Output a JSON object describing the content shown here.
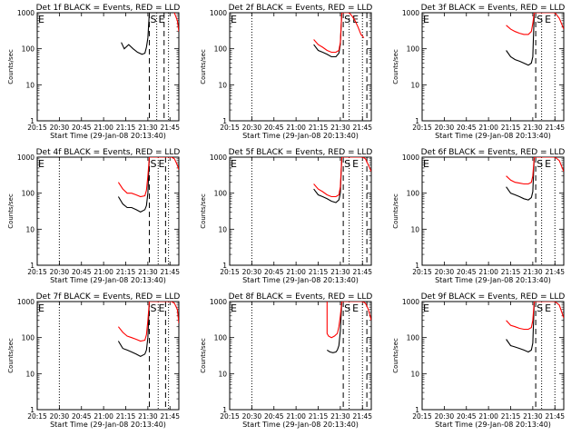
{
  "chart_data": [
    {
      "type": "line",
      "title": "Det 1f BLACK = Events, RED = LLD",
      "xlabel": "Start Time (29-Jan-08 20:13:40)",
      "ylabel": "Counts/sec",
      "xlim": [
        "20:15",
        "21:51"
      ],
      "ylim": [
        1,
        1000
      ],
      "yscale": "log",
      "x_ticks": [
        "20:15",
        "20:30",
        "20:45",
        "21:00",
        "21:15",
        "21:30",
        "21:45"
      ],
      "y_ticks": [
        "1",
        "10",
        "100",
        "1000"
      ],
      "markers": {
        "dotted": [
          "20:15",
          "21:36",
          "21:44"
        ],
        "dashed": [
          "21:31",
          "21:41"
        ],
        "labels": [
          "E",
          "S",
          "E"
        ]
      },
      "series": [
        {
          "name": "Events",
          "color": "#000000",
          "x": [
            "21:12",
            "21:14",
            "21:17",
            "21:20",
            "21:23",
            "21:26",
            "21:28",
            "21:29",
            "21:30",
            "21:31"
          ],
          "y": [
            150,
            100,
            130,
            100,
            80,
            70,
            75,
            110,
            200,
            1000
          ]
        },
        {
          "name": "LLD",
          "color": "#ff0000",
          "x": [
            "21:48",
            "21:50",
            "21:51"
          ],
          "y": [
            1000,
            600,
            300
          ]
        }
      ]
    },
    {
      "type": "line",
      "title": "Det 2f BLACK = Events, RED = LLD",
      "xlabel": "Start Time (29-Jan-08 20:13:40)",
      "ylabel": "Counts/sec",
      "xlim": [
        "20:15",
        "21:51"
      ],
      "ylim": [
        1,
        1000
      ],
      "yscale": "log",
      "x_ticks": [
        "20:15",
        "20:30",
        "20:45",
        "21:00",
        "21:15",
        "21:30",
        "21:45"
      ],
      "y_ticks": [
        "1",
        "10",
        "100",
        "1000"
      ],
      "markers": {
        "dotted": [
          "20:30",
          "21:36",
          "21:45"
        ],
        "dashed": [
          "21:32",
          "21:48"
        ],
        "labels": [
          "E",
          "S",
          "E"
        ]
      },
      "series": [
        {
          "name": "Events",
          "color": "#000000",
          "x": [
            "21:12",
            "21:15",
            "21:18",
            "21:21",
            "21:24",
            "21:27",
            "21:29",
            "21:30",
            "21:31"
          ],
          "y": [
            130,
            90,
            80,
            70,
            60,
            60,
            75,
            130,
            1000
          ]
        },
        {
          "name": "LLD",
          "color": "#ff0000",
          "x": [
            "21:12",
            "21:15",
            "21:18",
            "21:21",
            "21:24",
            "21:27",
            "21:29",
            "21:30",
            "21:31",
            "21:32",
            "21:34",
            "21:36",
            "21:38",
            "21:40",
            "21:42",
            "21:44",
            "21:46"
          ],
          "y": [
            180,
            130,
            110,
            90,
            80,
            80,
            90,
            150,
            1000,
            1000,
            1000,
            1000,
            800,
            600,
            400,
            250,
            200
          ]
        }
      ]
    },
    {
      "type": "line",
      "title": "Det 3f BLACK = Events, RED = LLD",
      "xlabel": "Start Time (29-Jan-08 20:13:40)",
      "ylabel": "Counts/sec",
      "xlim": [
        "20:15",
        "21:51"
      ],
      "ylim": [
        1,
        1000
      ],
      "yscale": "log",
      "x_ticks": [
        "20:15",
        "20:30",
        "20:45",
        "21:00",
        "21:15",
        "21:30",
        "21:45"
      ],
      "y_ticks": [
        "1",
        "10",
        "100",
        "1000"
      ],
      "markers": {
        "dotted": [
          "21:36",
          "21:45"
        ],
        "dashed": [
          "21:32"
        ],
        "labels": [
          "E",
          "S",
          "E"
        ]
      },
      "series": [
        {
          "name": "Events",
          "color": "#000000",
          "x": [
            "21:12",
            "21:15",
            "21:18",
            "21:21",
            "21:24",
            "21:27",
            "21:29",
            "21:30",
            "21:31"
          ],
          "y": [
            90,
            60,
            50,
            45,
            40,
            35,
            40,
            60,
            1000
          ]
        },
        {
          "name": "LLD",
          "color": "#ff0000",
          "x": [
            "21:12",
            "21:15",
            "21:18",
            "21:21",
            "21:24",
            "21:27",
            "21:29",
            "21:30",
            "21:31",
            "21:33",
            "21:36",
            "21:40",
            "21:45",
            "21:48",
            "21:51"
          ],
          "y": [
            450,
            350,
            300,
            270,
            250,
            250,
            300,
            500,
            1000,
            1000,
            1000,
            1000,
            1000,
            700,
            350
          ]
        }
      ]
    },
    {
      "type": "line",
      "title": "Det 4f BLACK = Events, RED = LLD",
      "xlabel": "Start Time (29-Jan-08 20:13:40)",
      "ylabel": "Counts/sec",
      "xlim": [
        "20:15",
        "21:51"
      ],
      "ylim": [
        1,
        1000
      ],
      "yscale": "log",
      "x_ticks": [
        "20:15",
        "20:30",
        "20:45",
        "21:00",
        "21:15",
        "21:30",
        "21:45"
      ],
      "y_ticks": [
        "1",
        "10",
        "100",
        "1000"
      ],
      "markers": {
        "dotted": [
          "20:30",
          "21:37",
          "21:44"
        ],
        "dashed": [
          "21:31",
          "21:42"
        ],
        "labels": [
          "E",
          "S",
          "E"
        ]
      },
      "series": [
        {
          "name": "Events",
          "color": "#000000",
          "x": [
            "21:10",
            "21:13",
            "21:16",
            "21:19",
            "21:22",
            "21:25",
            "21:28",
            "21:29",
            "21:30",
            "21:31"
          ],
          "y": [
            80,
            50,
            40,
            40,
            35,
            30,
            35,
            45,
            100,
            1000
          ]
        },
        {
          "name": "LLD",
          "color": "#ff0000",
          "x": [
            "21:10",
            "21:13",
            "21:16",
            "21:19",
            "21:22",
            "21:25",
            "21:28",
            "21:29",
            "21:30",
            "21:31",
            "21:42",
            "21:46",
            "21:48",
            "21:50",
            "21:51"
          ],
          "y": [
            200,
            130,
            100,
            100,
            90,
            80,
            85,
            120,
            300,
            1000,
            1000,
            1000,
            900,
            600,
            450
          ]
        }
      ]
    },
    {
      "type": "line",
      "title": "Det 5f BLACK = Events, RED = LLD",
      "xlabel": "Start Time (29-Jan-08 20:13:40)",
      "ylabel": "Counts/sec",
      "xlim": [
        "20:15",
        "21:51"
      ],
      "ylim": [
        1,
        1000
      ],
      "yscale": "log",
      "x_ticks": [
        "20:15",
        "20:30",
        "20:45",
        "21:00",
        "21:15",
        "21:30",
        "21:45"
      ],
      "y_ticks": [
        "1",
        "10",
        "100",
        "1000"
      ],
      "markers": {
        "dotted": [
          "20:30",
          "21:36",
          "21:45"
        ],
        "dashed": [
          "21:32",
          "21:48"
        ],
        "labels": [
          "E",
          "S",
          "E"
        ]
      },
      "series": [
        {
          "name": "Events",
          "color": "#000000",
          "x": [
            "21:12",
            "21:15",
            "21:18",
            "21:21",
            "21:24",
            "21:27",
            "21:29",
            "21:30",
            "21:31"
          ],
          "y": [
            130,
            90,
            80,
            70,
            60,
            55,
            65,
            100,
            1000
          ]
        },
        {
          "name": "LLD",
          "color": "#ff0000",
          "x": [
            "21:12",
            "21:15",
            "21:18",
            "21:21",
            "21:24",
            "21:27",
            "21:29",
            "21:30",
            "21:31",
            "21:45",
            "21:47",
            "21:49",
            "21:51"
          ],
          "y": [
            180,
            130,
            110,
            90,
            80,
            80,
            90,
            150,
            1000,
            1000,
            900,
            600,
            400
          ]
        }
      ]
    },
    {
      "type": "line",
      "title": "Det 6f BLACK = Events, RED = LLD",
      "xlabel": "Start Time (29-Jan-08 20:13:40)",
      "ylabel": "Counts/sec",
      "xlim": [
        "20:15",
        "21:51"
      ],
      "ylim": [
        1,
        1000
      ],
      "yscale": "log",
      "x_ticks": [
        "20:15",
        "20:30",
        "20:45",
        "21:00",
        "21:15",
        "21:30",
        "21:45"
      ],
      "y_ticks": [
        "1",
        "10",
        "100",
        "1000"
      ],
      "markers": {
        "dotted": [
          "21:36",
          "21:45"
        ],
        "dashed": [
          "21:32"
        ],
        "labels": [
          "E",
          "S",
          "E"
        ]
      },
      "series": [
        {
          "name": "Events",
          "color": "#000000",
          "x": [
            "21:12",
            "21:15",
            "21:18",
            "21:21",
            "21:24",
            "21:27",
            "21:29",
            "21:30",
            "21:31"
          ],
          "y": [
            150,
            100,
            90,
            80,
            70,
            65,
            75,
            110,
            1000
          ]
        },
        {
          "name": "LLD",
          "color": "#ff0000",
          "x": [
            "21:12",
            "21:15",
            "21:18",
            "21:21",
            "21:24",
            "21:27",
            "21:29",
            "21:30",
            "21:31",
            "21:36",
            "21:45",
            "21:48",
            "21:51"
          ],
          "y": [
            300,
            230,
            200,
            190,
            180,
            180,
            200,
            300,
            1000,
            1000,
            1000,
            800,
            400
          ]
        }
      ]
    },
    {
      "type": "line",
      "title": "Det 7f BLACK = Events, RED = LLD",
      "xlabel": "Start Time (29-Jan-08 20:13:40)",
      "ylabel": "Counts/sec",
      "xlim": [
        "20:15",
        "21:51"
      ],
      "ylim": [
        1,
        1000
      ],
      "yscale": "log",
      "x_ticks": [
        "20:15",
        "20:30",
        "20:45",
        "21:00",
        "21:15",
        "21:30",
        "21:45"
      ],
      "y_ticks": [
        "1",
        "10",
        "100",
        "1000"
      ],
      "markers": {
        "dotted": [
          "20:30",
          "21:37",
          "21:44"
        ],
        "dashed": [
          "21:31",
          "21:42"
        ],
        "labels": [
          "E",
          "S",
          "E"
        ]
      },
      "series": [
        {
          "name": "Events",
          "color": "#000000",
          "x": [
            "21:10",
            "21:13",
            "21:16",
            "21:19",
            "21:22",
            "21:25",
            "21:28",
            "21:29",
            "21:30",
            "21:31"
          ],
          "y": [
            80,
            50,
            45,
            40,
            35,
            30,
            35,
            45,
            100,
            1000
          ]
        },
        {
          "name": "LLD",
          "color": "#ff0000",
          "x": [
            "21:10",
            "21:13",
            "21:16",
            "21:19",
            "21:22",
            "21:25",
            "21:28",
            "21:29",
            "21:30",
            "21:31",
            "21:42",
            "21:46",
            "21:48",
            "21:50",
            "21:51"
          ],
          "y": [
            200,
            140,
            110,
            100,
            90,
            80,
            85,
            120,
            300,
            1000,
            1000,
            1000,
            900,
            600,
            250
          ]
        }
      ]
    },
    {
      "type": "line",
      "title": "Det 8f BLACK = Events, RED = LLD",
      "xlabel": "Start Time (29-Jan-08 20:13:40)",
      "ylabel": "Counts/sec",
      "xlim": [
        "20:15",
        "21:51"
      ],
      "ylim": [
        1,
        1000
      ],
      "yscale": "log",
      "x_ticks": [
        "20:15",
        "20:30",
        "20:45",
        "21:00",
        "21:15",
        "21:30",
        "21:45"
      ],
      "y_ticks": [
        "1",
        "10",
        "100",
        "1000"
      ],
      "markers": {
        "dotted": [
          "20:30",
          "21:36",
          "21:45"
        ],
        "dashed": [
          "21:32",
          "21:48"
        ],
        "labels": [
          "E",
          "S",
          "E"
        ]
      },
      "series": [
        {
          "name": "Events",
          "color": "#000000",
          "x": [
            "21:21",
            "21:23",
            "21:25",
            "21:27",
            "21:28",
            "21:29",
            "21:30",
            "21:31"
          ],
          "y": [
            45,
            40,
            38,
            40,
            45,
            60,
            150,
            1000
          ]
        },
        {
          "name": "LLD",
          "color": "#ff0000",
          "x": [
            "21:21",
            "21:21",
            "21:22",
            "21:24",
            "21:26",
            "21:28",
            "21:29",
            "21:30",
            "21:31",
            "21:45",
            "21:47",
            "21:49",
            "21:51"
          ],
          "y": [
            1000,
            130,
            110,
            100,
            110,
            130,
            200,
            400,
            1000,
            1000,
            900,
            600,
            300
          ]
        }
      ]
    },
    {
      "type": "line",
      "title": "Det 9f BLACK = Events, RED = LLD",
      "xlabel": "Start Time (29-Jan-08 20:13:40)",
      "ylabel": "Counts/sec",
      "xlim": [
        "20:15",
        "21:51"
      ],
      "ylim": [
        1,
        1000
      ],
      "yscale": "log",
      "x_ticks": [
        "20:15",
        "20:30",
        "20:45",
        "21:00",
        "21:15",
        "21:30",
        "21:45"
      ],
      "y_ticks": [
        "1",
        "10",
        "100",
        "1000"
      ],
      "markers": {
        "dotted": [
          "21:36",
          "21:45"
        ],
        "dashed": [
          "21:32"
        ],
        "labels": [
          "E",
          "S",
          "E"
        ]
      },
      "series": [
        {
          "name": "Events",
          "color": "#000000",
          "x": [
            "21:12",
            "21:15",
            "21:18",
            "21:21",
            "21:24",
            "21:27",
            "21:29",
            "21:30",
            "21:31"
          ],
          "y": [
            90,
            60,
            55,
            50,
            45,
            40,
            45,
            70,
            1000
          ]
        },
        {
          "name": "LLD",
          "color": "#ff0000",
          "x": [
            "21:12",
            "21:15",
            "21:18",
            "21:21",
            "21:24",
            "21:27",
            "21:29",
            "21:30",
            "21:31",
            "21:38",
            "21:45",
            "21:48",
            "21:51"
          ],
          "y": [
            300,
            220,
            200,
            180,
            170,
            170,
            190,
            300,
            1000,
            1000,
            1000,
            800,
            350
          ]
        }
      ]
    }
  ]
}
